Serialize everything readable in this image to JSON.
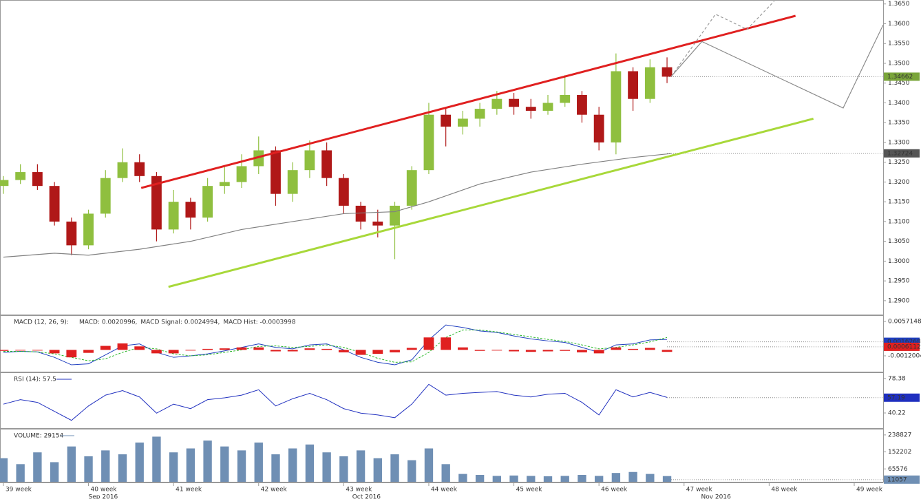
{
  "chart_data": [
    {
      "type": "candlestick",
      "x": [
        39.0,
        39.2,
        39.4,
        39.6,
        39.8,
        40.0,
        40.2,
        40.4,
        40.6,
        40.8,
        41.0,
        41.2,
        41.4,
        41.6,
        41.8,
        42.0,
        42.2,
        42.4,
        42.6,
        42.8,
        43.0,
        43.2,
        43.4,
        43.6,
        43.8,
        44.0,
        44.2,
        44.4,
        44.6,
        44.8,
        45.0,
        45.2,
        45.4,
        45.6,
        45.8,
        46.0,
        46.2,
        46.4,
        46.6,
        46.8
      ],
      "open": [
        1.319,
        1.3205,
        1.3225,
        1.319,
        1.31,
        1.304,
        1.312,
        1.321,
        1.325,
        1.3215,
        1.308,
        1.315,
        1.311,
        1.319,
        1.32,
        1.324,
        1.328,
        1.317,
        1.323,
        1.328,
        1.321,
        1.314,
        1.31,
        1.309,
        1.314,
        1.323,
        1.337,
        1.334,
        1.336,
        1.3385,
        1.341,
        1.339,
        1.338,
        1.34,
        1.342,
        1.337,
        1.33,
        1.348,
        1.341,
        1.349
      ],
      "high": [
        1.3215,
        1.3245,
        1.3245,
        1.32,
        1.311,
        1.313,
        1.323,
        1.3285,
        1.327,
        1.3225,
        1.318,
        1.316,
        1.321,
        1.324,
        1.327,
        1.3315,
        1.329,
        1.325,
        1.3305,
        1.33,
        1.322,
        1.315,
        1.313,
        1.315,
        1.324,
        1.34,
        1.339,
        1.338,
        1.34,
        1.343,
        1.3425,
        1.341,
        1.342,
        1.347,
        1.343,
        1.339,
        1.3525,
        1.349,
        1.351,
        1.3515
      ],
      "low": [
        1.317,
        1.3195,
        1.318,
        1.309,
        1.3015,
        1.303,
        1.311,
        1.32,
        1.32,
        1.305,
        1.307,
        1.308,
        1.31,
        1.317,
        1.3185,
        1.322,
        1.314,
        1.315,
        1.321,
        1.319,
        1.312,
        1.308,
        1.306,
        1.3005,
        1.313,
        1.322,
        1.329,
        1.332,
        1.334,
        1.337,
        1.337,
        1.336,
        1.337,
        1.339,
        1.335,
        1.328,
        1.327,
        1.338,
        1.34,
        1.345
      ],
      "close": [
        1.3205,
        1.3225,
        1.319,
        1.31,
        1.304,
        1.312,
        1.321,
        1.325,
        1.3215,
        1.308,
        1.315,
        1.311,
        1.319,
        1.32,
        1.324,
        1.328,
        1.317,
        1.323,
        1.328,
        1.321,
        1.314,
        1.31,
        1.309,
        1.314,
        1.323,
        1.337,
        1.334,
        1.336,
        1.3385,
        1.341,
        1.339,
        1.338,
        1.34,
        1.342,
        1.337,
        1.33,
        1.348,
        1.341,
        1.349,
        1.34662
      ],
      "up_color": "#8fbf3f",
      "down_color": "#b01818",
      "xlim": [
        38.96,
        49.34
      ],
      "xticks": [
        {
          "value": 39,
          "label": "39 week"
        },
        {
          "value": 40,
          "label": "40 week"
        },
        {
          "value": 41,
          "label": "41 week"
        },
        {
          "value": 42,
          "label": "42 week"
        },
        {
          "value": 43,
          "label": "43 week"
        },
        {
          "value": 44,
          "label": "44 week"
        },
        {
          "value": 45,
          "label": "45 week"
        },
        {
          "value": 46,
          "label": "46 week"
        },
        {
          "value": 47,
          "label": "47 week"
        },
        {
          "value": 48,
          "label": "48 week"
        },
        {
          "value": 49,
          "label": "49 week"
        }
      ],
      "month_labels": [
        {
          "value": 40.0,
          "label": "Sep 2016"
        },
        {
          "value": 43.1,
          "label": "Oct 2016"
        },
        {
          "value": 47.2,
          "label": "Nov 2016"
        }
      ],
      "ylim": [
        1.2865,
        1.366
      ],
      "yticks": [
        {
          "value": 1.365,
          "label": "1.3650"
        },
        {
          "value": 1.36,
          "label": "1.3600"
        },
        {
          "value": 1.355,
          "label": "1.3550"
        },
        {
          "value": 1.35,
          "label": "1.3500"
        },
        {
          "value": 1.345,
          "label": "1.3450"
        },
        {
          "value": 1.34,
          "label": "1.3400"
        },
        {
          "value": 1.335,
          "label": "1.3350"
        },
        {
          "value": 1.33,
          "label": "1.3300"
        },
        {
          "value": 1.325,
          "label": "1.3250"
        },
        {
          "value": 1.32,
          "label": "1.3200"
        },
        {
          "value": 1.315,
          "label": "1.3150"
        },
        {
          "value": 1.31,
          "label": "1.3100"
        },
        {
          "value": 1.305,
          "label": "1.3050"
        },
        {
          "value": 1.3,
          "label": "1.3000"
        },
        {
          "value": 1.295,
          "label": "1.2950"
        },
        {
          "value": 1.29,
          "label": "1.2900"
        }
      ],
      "lines": [
        {
          "color": "#808080",
          "width": 1.2,
          "dash": false,
          "x": [
            39.0,
            39.6,
            40.0,
            40.6,
            41.2,
            41.8,
            42.4,
            43.0,
            43.6,
            44.0,
            44.6,
            45.2,
            45.8,
            46.4,
            46.85
          ],
          "values": [
            1.301,
            1.302,
            1.3015,
            1.303,
            1.305,
            1.308,
            1.31,
            1.312,
            1.3125,
            1.315,
            1.3195,
            1.3225,
            1.3245,
            1.3262,
            1.3272
          ]
        },
        {
          "color": "#e02020",
          "width": 3,
          "dash": false,
          "x": [
            40.62,
            48.31
          ],
          "values": [
            1.3185,
            1.362
          ]
        },
        {
          "color": "#a8d83a",
          "width": 3,
          "dash": false,
          "x": [
            40.94,
            48.52
          ],
          "values": [
            1.2935,
            1.336
          ]
        },
        {
          "color": "#8a8a8a",
          "width": 1.2,
          "dash": false,
          "x": [
            46.85,
            47.21,
            48.87,
            49.34
          ],
          "values": [
            1.3467,
            1.3555,
            1.3387,
            1.3597
          ]
        },
        {
          "color": "#9a9a9a",
          "width": 1.2,
          "dash": true,
          "x": [
            46.85,
            47.37,
            47.74,
            48.06
          ],
          "values": [
            1.3467,
            1.3624,
            1.3586,
            1.3657
          ]
        }
      ],
      "price_boxes": [
        {
          "value": 1.34662,
          "label": "1.34662",
          "color": "#7aa53a"
        },
        {
          "value": 1.32724,
          "label": "1.32724",
          "color": "#555555"
        }
      ]
    },
    {
      "type": "macd",
      "title": "MACD (12, 26, 9):",
      "series": [
        {
          "name": "MACD: 0.0020996,",
          "color": "#1f3fbf",
          "values": [
            -0.0005,
            -0.0003,
            -0.0004,
            -0.0015,
            -0.003,
            -0.0028,
            -0.001,
            0.0008,
            0.0012,
            -0.0005,
            -0.0015,
            -0.0012,
            -0.0008,
            -0.0002,
            0.0005,
            0.0012,
            0.0005,
            0.0002,
            0.001,
            0.0012,
            0.0,
            -0.0015,
            -0.0025,
            -0.003,
            -0.002,
            0.002,
            0.005,
            0.0045,
            0.0038,
            0.0035,
            0.0028,
            0.0022,
            0.0018,
            0.0015,
            0.0005,
            -0.0005,
            0.001,
            0.0012,
            0.002,
            0.0021
          ]
        },
        {
          "name": "MACD Signal: 0.0024994,",
          "color": "#28b828",
          "dash": true,
          "values": [
            -0.0003,
            -0.0003,
            -0.0004,
            -0.0008,
            -0.0015,
            -0.0022,
            -0.0018,
            -0.0005,
            0.0005,
            0.0002,
            -0.0008,
            -0.0012,
            -0.001,
            -0.0005,
            0.0,
            0.0007,
            0.0008,
            0.0005,
            0.0007,
            0.001,
            0.0005,
            -0.0005,
            -0.0017,
            -0.0025,
            -0.0024,
            -0.0005,
            0.0025,
            0.004,
            0.004,
            0.0036,
            0.0031,
            0.0026,
            0.0021,
            0.0017,
            0.001,
            0.0002,
            0.0005,
            0.001,
            0.0016,
            0.0025
          ]
        },
        {
          "name": "MACD Hist: -0.0003998",
          "color": "#e02020",
          "bars": true,
          "values": [
            -0.0002,
            0,
            0,
            -0.0007,
            -0.0015,
            -0.0006,
            0.0008,
            0.0013,
            0.0007,
            -0.0007,
            -0.0007,
            0,
            0.0002,
            0.0003,
            0.0005,
            0.0005,
            -0.0003,
            -0.0003,
            0.0003,
            0.0002,
            -0.0005,
            -0.001,
            -0.0008,
            -0.0005,
            0.0004,
            0.0025,
            0.0025,
            0.0005,
            -0.0002,
            -0.0001,
            -0.0003,
            -0.0004,
            -0.0003,
            -0.0002,
            -0.0005,
            -0.0007,
            0.0005,
            0.0002,
            0.0004,
            -0.0004
          ]
        }
      ],
      "ylim": [
        -0.00438,
        0.00696
      ],
      "yticks": [
        0.0057148,
        -0.0012004
      ],
      "value_boxes": [
        {
          "value": 0.0016268,
          "label": "0.0016268",
          "color": "#1f3fbf"
        },
        {
          "value": 0.0006112,
          "label": "0.0006112",
          "color": "#e02020"
        }
      ]
    },
    {
      "type": "line",
      "title": "RSI (14): 57.5",
      "color": "#1f2fbf",
      "values": [
        50,
        55,
        52,
        42,
        32,
        48,
        60,
        65,
        58,
        40,
        50,
        45,
        55,
        57,
        60,
        66,
        48,
        56,
        62,
        55,
        45,
        40,
        38,
        35,
        50,
        72,
        60,
        62,
        63,
        64,
        60,
        58,
        61,
        62,
        52,
        38,
        66,
        58,
        63,
        57.5
      ],
      "ylim": [
        23.4,
        85.3
      ],
      "yticks": [
        78.38,
        40.22
      ],
      "value_boxes": [
        {
          "value": 57.19,
          "label": "57.19",
          "color": "#1f2fbf"
        }
      ]
    },
    {
      "type": "bar",
      "title": "VOLUME: 29154",
      "color": "#6f8fb4",
      "values": [
        120000,
        90000,
        150000,
        100000,
        180000,
        130000,
        160000,
        140000,
        200000,
        230000,
        150000,
        170000,
        210000,
        180000,
        160000,
        200000,
        140000,
        170000,
        190000,
        150000,
        130000,
        160000,
        120000,
        140000,
        110000,
        170000,
        90000,
        40000,
        35000,
        30000,
        32000,
        30000,
        28000,
        30000,
        35000,
        30000,
        45000,
        50000,
        40000,
        29154
      ],
      "ylim": [
        0,
        270000
      ],
      "yticks": [
        238827,
        152202,
        65576
      ],
      "value_boxes": [
        {
          "value": 11057,
          "label": "11057",
          "color": "#6f8fb4"
        }
      ]
    }
  ]
}
